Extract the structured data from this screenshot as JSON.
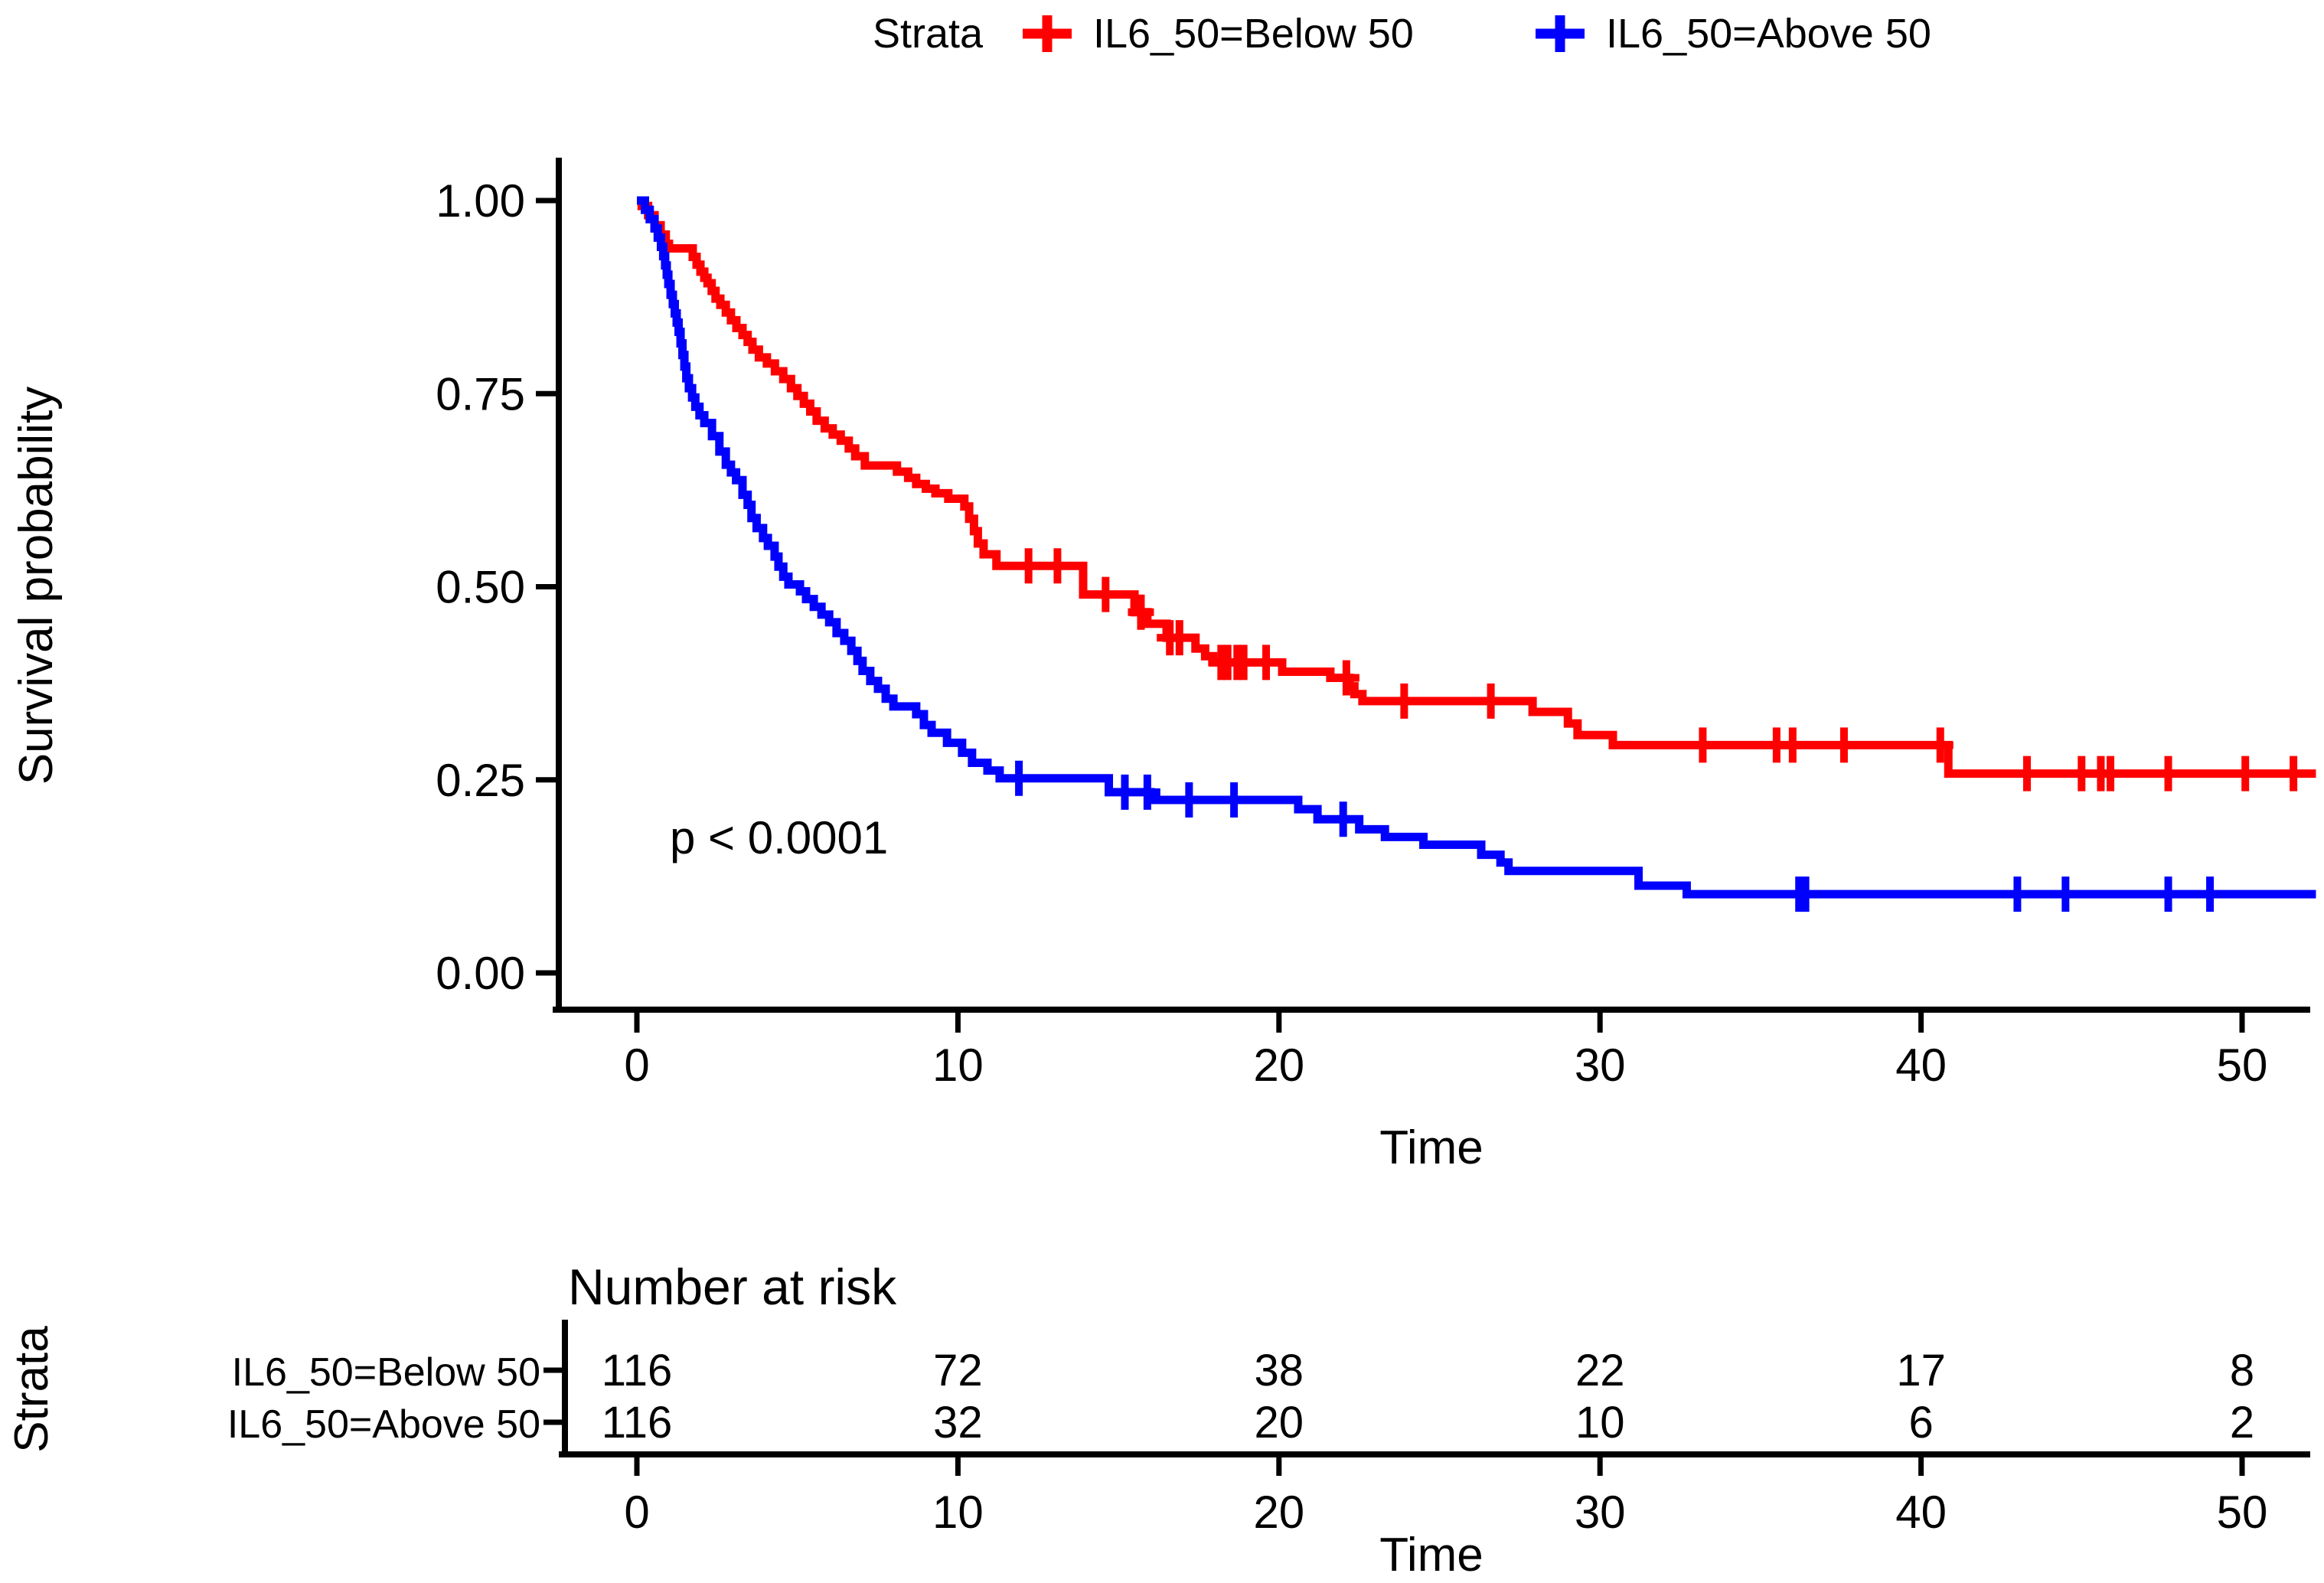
{
  "chart_data": {
    "type": "line",
    "subtype": "kaplan-meier-step",
    "legend_title": "Strata",
    "xlabel": "Time",
    "ylabel": "Survival probability",
    "pvalue_annotation": "p < 0.0001",
    "xlim": [
      -2.4,
      52.5
    ],
    "ylim": [
      0,
      1.05
    ],
    "xticks": [
      0,
      10,
      20,
      30,
      40,
      50
    ],
    "yticks": [
      0.0,
      0.25,
      0.5,
      0.75,
      1.0
    ],
    "grid": false,
    "legend_position": "top",
    "series": [
      {
        "name": "IL6_50=Below 50",
        "color": "#FF0000",
        "steps": [
          [
            0,
            1.0
          ],
          [
            0.15,
            0.993
          ],
          [
            0.35,
            0.981
          ],
          [
            0.55,
            0.968
          ],
          [
            0.74,
            0.956
          ],
          [
            0.9,
            0.944
          ],
          [
            1.0,
            0.938
          ],
          [
            1.74,
            0.927
          ],
          [
            1.86,
            0.917
          ],
          [
            1.98,
            0.908
          ],
          [
            2.1,
            0.9
          ],
          [
            2.2,
            0.893
          ],
          [
            2.33,
            0.883
          ],
          [
            2.45,
            0.873
          ],
          [
            2.6,
            0.865
          ],
          [
            2.77,
            0.855
          ],
          [
            2.93,
            0.845
          ],
          [
            3.1,
            0.835
          ],
          [
            3.29,
            0.826
          ],
          [
            3.45,
            0.817
          ],
          [
            3.6,
            0.807
          ],
          [
            3.8,
            0.797
          ],
          [
            4.05,
            0.789
          ],
          [
            4.3,
            0.779
          ],
          [
            4.56,
            0.769
          ],
          [
            4.8,
            0.757
          ],
          [
            5.0,
            0.747
          ],
          [
            5.2,
            0.737
          ],
          [
            5.4,
            0.727
          ],
          [
            5.6,
            0.715
          ],
          [
            5.85,
            0.705
          ],
          [
            6.1,
            0.697
          ],
          [
            6.35,
            0.689
          ],
          [
            6.6,
            0.679
          ],
          [
            6.8,
            0.669
          ],
          [
            7.1,
            0.657
          ],
          [
            8.1,
            0.649
          ],
          [
            8.45,
            0.641
          ],
          [
            8.7,
            0.633
          ],
          [
            9.0,
            0.627
          ],
          [
            9.3,
            0.621
          ],
          [
            9.7,
            0.614
          ],
          [
            10.2,
            0.604
          ],
          [
            10.35,
            0.588
          ],
          [
            10.5,
            0.572
          ],
          [
            10.62,
            0.556
          ],
          [
            10.8,
            0.542
          ],
          [
            11.2,
            0.527
          ],
          [
            13.9,
            0.49
          ],
          [
            15.5,
            0.467
          ],
          [
            15.9,
            0.452
          ],
          [
            16.5,
            0.434
          ],
          [
            17.4,
            0.42
          ],
          [
            17.7,
            0.41
          ],
          [
            17.95,
            0.402
          ],
          [
            20.1,
            0.39
          ],
          [
            21.6,
            0.382
          ],
          [
            22.2,
            0.371
          ],
          [
            22.35,
            0.361
          ],
          [
            22.6,
            0.352
          ],
          [
            27.9,
            0.338
          ],
          [
            29.0,
            0.323
          ],
          [
            29.3,
            0.308
          ],
          [
            30.4,
            0.295
          ],
          [
            40.85,
            0.258
          ],
          [
            52.3,
            0.258
          ]
        ],
        "censor_times": [
          12.2,
          13.1,
          14.6,
          15.7,
          16.6,
          16.9,
          18.2,
          18.4,
          18.7,
          18.9,
          19.6,
          22.1,
          23.9,
          26.6,
          33.2,
          35.5,
          36.0,
          37.6,
          40.6,
          43.3,
          45.0,
          45.6,
          45.9,
          47.7,
          50.1,
          51.6
        ]
      },
      {
        "name": "IL6_50=Above 50",
        "color": "#0000FF",
        "steps": [
          [
            0,
            1.0
          ],
          [
            0.25,
            0.988
          ],
          [
            0.4,
            0.976
          ],
          [
            0.55,
            0.964
          ],
          [
            0.65,
            0.952
          ],
          [
            0.75,
            0.94
          ],
          [
            0.82,
            0.928
          ],
          [
            0.88,
            0.916
          ],
          [
            0.93,
            0.904
          ],
          [
            0.98,
            0.892
          ],
          [
            1.05,
            0.878
          ],
          [
            1.12,
            0.866
          ],
          [
            1.18,
            0.854
          ],
          [
            1.24,
            0.842
          ],
          [
            1.3,
            0.83
          ],
          [
            1.36,
            0.815
          ],
          [
            1.42,
            0.8
          ],
          [
            1.48,
            0.785
          ],
          [
            1.54,
            0.77
          ],
          [
            1.62,
            0.757
          ],
          [
            1.72,
            0.745
          ],
          [
            1.82,
            0.733
          ],
          [
            1.95,
            0.722
          ],
          [
            2.1,
            0.712
          ],
          [
            2.34,
            0.695
          ],
          [
            2.57,
            0.675
          ],
          [
            2.77,
            0.658
          ],
          [
            2.93,
            0.648
          ],
          [
            3.09,
            0.638
          ],
          [
            3.29,
            0.619
          ],
          [
            3.45,
            0.606
          ],
          [
            3.57,
            0.589
          ],
          [
            3.73,
            0.576
          ],
          [
            3.93,
            0.563
          ],
          [
            4.08,
            0.553
          ],
          [
            4.29,
            0.539
          ],
          [
            4.41,
            0.526
          ],
          [
            4.56,
            0.513
          ],
          [
            4.72,
            0.503
          ],
          [
            5.08,
            0.494
          ],
          [
            5.27,
            0.484
          ],
          [
            5.51,
            0.474
          ],
          [
            5.75,
            0.464
          ],
          [
            5.99,
            0.454
          ],
          [
            6.22,
            0.44
          ],
          [
            6.46,
            0.43
          ],
          [
            6.68,
            0.417
          ],
          [
            6.87,
            0.404
          ],
          [
            7.03,
            0.391
          ],
          [
            7.27,
            0.378
          ],
          [
            7.51,
            0.368
          ],
          [
            7.75,
            0.355
          ],
          [
            7.99,
            0.345
          ],
          [
            8.7,
            0.335
          ],
          [
            8.94,
            0.321
          ],
          [
            9.18,
            0.311
          ],
          [
            9.66,
            0.298
          ],
          [
            10.13,
            0.285
          ],
          [
            10.44,
            0.272
          ],
          [
            10.92,
            0.262
          ],
          [
            11.3,
            0.252
          ],
          [
            14.7,
            0.234
          ],
          [
            16.0,
            0.224
          ],
          [
            20.6,
            0.212
          ],
          [
            21.2,
            0.199
          ],
          [
            22.5,
            0.186
          ],
          [
            23.3,
            0.176
          ],
          [
            24.5,
            0.166
          ],
          [
            26.3,
            0.153
          ],
          [
            26.9,
            0.143
          ],
          [
            27.15,
            0.132
          ],
          [
            31.2,
            0.113
          ],
          [
            32.7,
            0.102
          ],
          [
            52.3,
            0.102
          ]
        ],
        "censor_times": [
          11.9,
          15.2,
          15.9,
          17.2,
          18.6,
          22.0,
          36.2,
          36.4,
          43.0,
          44.5,
          47.7,
          49.0
        ]
      }
    ],
    "risk_table": {
      "title": "Number at risk",
      "strata_axis_label": "Strata",
      "xlabel": "Time",
      "times": [
        0,
        10,
        20,
        30,
        40,
        50
      ],
      "rows": [
        {
          "label": "IL6_50=Below 50",
          "color": "#FF0000",
          "counts": [
            116,
            72,
            38,
            22,
            17,
            8
          ]
        },
        {
          "label": "IL6_50=Above 50",
          "color": "#0000FF",
          "counts": [
            116,
            32,
            20,
            10,
            6,
            2
          ]
        }
      ]
    }
  }
}
